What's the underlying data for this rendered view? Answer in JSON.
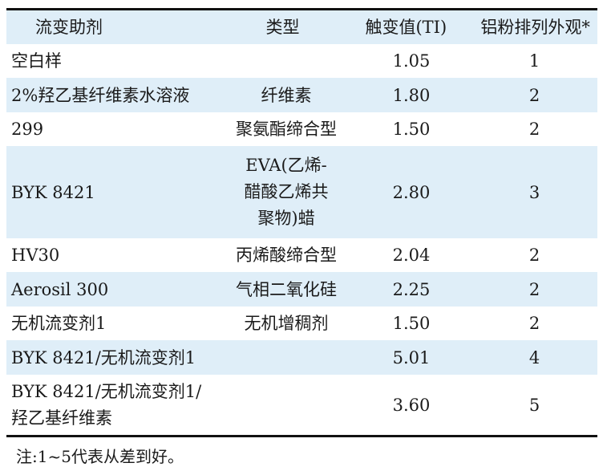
{
  "table": {
    "headers": [
      "流变助剂",
      "类型",
      "触变值(TI)",
      "铝粉排列外观*"
    ],
    "rows": [
      {
        "agent": "空白样",
        "type": "",
        "ti": "1.05",
        "appearance": "1"
      },
      {
        "agent": "2%羟乙基纤维素水溶液",
        "type": "纤维素",
        "ti": "1.80",
        "appearance": "2"
      },
      {
        "agent": "299",
        "type": "聚氨酯缔合型",
        "ti": "1.50",
        "appearance": "2"
      },
      {
        "agent": "BYK 8421",
        "type": "EVA(乙烯-\n醋酸乙烯共\n聚物)蜡",
        "ti": "2.80",
        "appearance": "3"
      },
      {
        "agent": "HV30",
        "type": "丙烯酸缔合型",
        "ti": "2.04",
        "appearance": "2"
      },
      {
        "agent": "Aerosil 300",
        "type": "气相二氧化硅",
        "ti": "2.25",
        "appearance": "2"
      },
      {
        "agent": "无机流变剂1",
        "type": "无机增稠剂",
        "ti": "1.50",
        "appearance": "2"
      },
      {
        "agent": "BYK 8421/无机流变剂1",
        "type": "",
        "ti": "5.01",
        "appearance": "4"
      },
      {
        "agent": "BYK 8421/无机流变剂1/\n羟乙基纤维素",
        "type": "",
        "ti": "3.60",
        "appearance": "5"
      }
    ]
  },
  "note": "注:1~5代表从差到好。",
  "colors": {
    "header_bg": "#dfeef8",
    "row_shade": "#dfeef8",
    "rule": "#111111"
  }
}
